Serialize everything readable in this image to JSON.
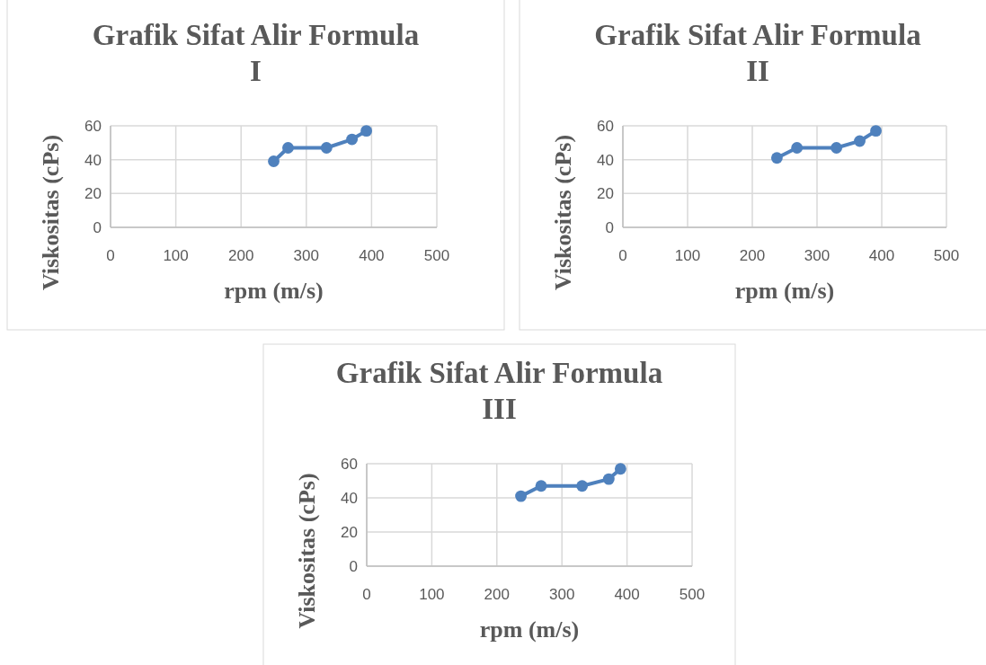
{
  "chart_data": [
    {
      "type": "line",
      "title": "Grafik Sifat Alir Formula I",
      "xlabel": "rpm (m/s)",
      "ylabel": "Viskositas (cPs)",
      "xlim": [
        0,
        500
      ],
      "xticks": [
        0,
        100,
        200,
        300,
        400,
        500
      ],
      "ylim": [
        0,
        60
      ],
      "yticks": [
        0,
        20,
        40,
        60
      ],
      "grid": true,
      "marker": "circle",
      "series": [
        {
          "color": "#4f81bd",
          "x": [
            250,
            272,
            331,
            370,
            392
          ],
          "values": [
            39,
            47,
            47,
            52,
            57
          ]
        }
      ]
    },
    {
      "type": "line",
      "title": "Grafik Sifat Alir Formula II",
      "xlabel": "rpm (m/s)",
      "ylabel": "Viskositas (cPs)",
      "xlim": [
        0,
        500
      ],
      "xticks": [
        0,
        100,
        200,
        300,
        400,
        500
      ],
      "ylim": [
        0,
        60
      ],
      "yticks": [
        0,
        20,
        40,
        60
      ],
      "grid": true,
      "marker": "circle",
      "series": [
        {
          "color": "#4f81bd",
          "x": [
            238,
            269,
            330,
            366,
            391
          ],
          "values": [
            41,
            47,
            47,
            51,
            57
          ]
        }
      ]
    },
    {
      "type": "line",
      "title": "Grafik Sifat Alir Formula III",
      "xlabel": "rpm (m/s)",
      "ylabel": "Viskositas (cPs)",
      "xlim": [
        0,
        500
      ],
      "xticks": [
        0,
        100,
        200,
        300,
        400,
        500
      ],
      "ylim": [
        0,
        60
      ],
      "yticks": [
        0,
        20,
        40,
        60
      ],
      "grid": true,
      "marker": "circle",
      "series": [
        {
          "color": "#4f81bd",
          "x": [
            237,
            268,
            331,
            372,
            390
          ],
          "values": [
            41,
            47,
            47,
            51,
            57
          ]
        }
      ]
    }
  ]
}
